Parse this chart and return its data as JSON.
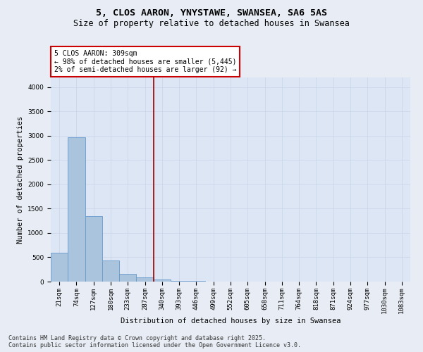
{
  "title": "5, CLOS AARON, YNYSTAWE, SWANSEA, SA6 5AS",
  "subtitle": "Size of property relative to detached houses in Swansea",
  "xlabel": "Distribution of detached houses by size in Swansea",
  "ylabel": "Number of detached properties",
  "categories": [
    "21sqm",
    "74sqm",
    "127sqm",
    "180sqm",
    "233sqm",
    "287sqm",
    "340sqm",
    "393sqm",
    "446sqm",
    "499sqm",
    "552sqm",
    "605sqm",
    "658sqm",
    "711sqm",
    "764sqm",
    "818sqm",
    "871sqm",
    "924sqm",
    "977sqm",
    "1030sqm",
    "1083sqm"
  ],
  "values": [
    590,
    2970,
    1350,
    430,
    160,
    90,
    50,
    20,
    10,
    5,
    3,
    2,
    1,
    1,
    1,
    0,
    0,
    0,
    0,
    0,
    0
  ],
  "bar_color": "#aac4de",
  "bar_edge_color": "#6699cc",
  "vline_x": 5.5,
  "vline_color": "#990000",
  "annotation_text": "5 CLOS AARON: 309sqm\n← 98% of detached houses are smaller (5,445)\n2% of semi-detached houses are larger (92) →",
  "annotation_box_color": "#ffffff",
  "annotation_box_edge_color": "#cc0000",
  "ylim": [
    0,
    4200
  ],
  "yticks": [
    0,
    500,
    1000,
    1500,
    2000,
    2500,
    3000,
    3500,
    4000
  ],
  "background_color": "#e8edf5",
  "plot_background": "#dce6f5",
  "grid_color": "#c8d4e8",
  "footer_text": "Contains HM Land Registry data © Crown copyright and database right 2025.\nContains public sector information licensed under the Open Government Licence v3.0.",
  "title_fontsize": 9.5,
  "subtitle_fontsize": 8.5,
  "axis_label_fontsize": 7.5,
  "tick_fontsize": 6.5,
  "annotation_fontsize": 7,
  "footer_fontsize": 6
}
